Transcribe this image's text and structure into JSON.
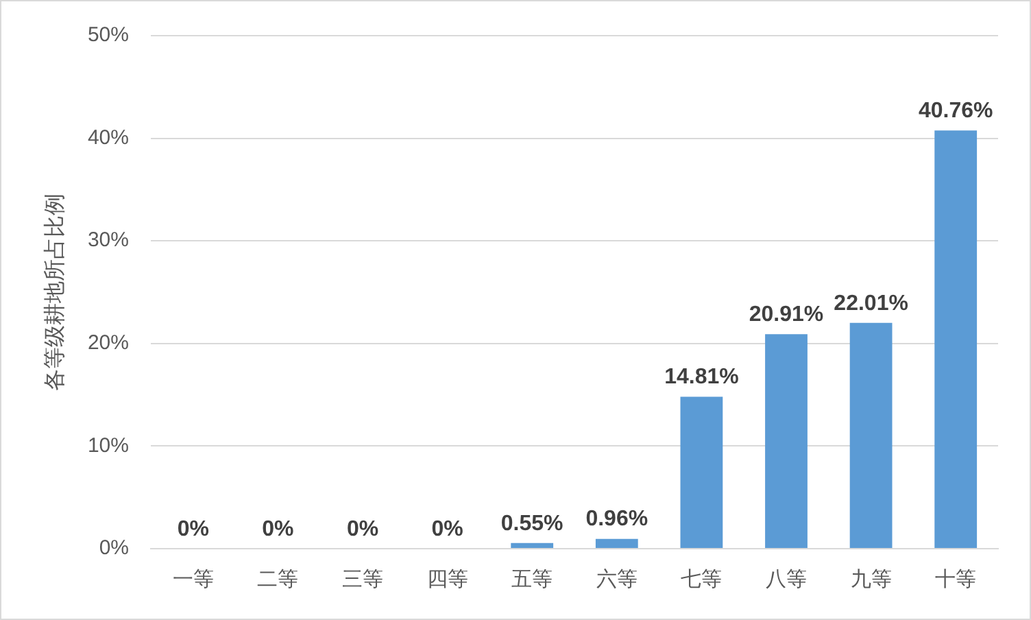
{
  "chart_data": {
    "type": "bar",
    "ylabel": "各等级耕地所占比例",
    "categories": [
      "一等",
      "二等",
      "三等",
      "四等",
      "五等",
      "六等",
      "七等",
      "八等",
      "九等",
      "十等"
    ],
    "values": [
      0,
      0,
      0,
      0,
      0.55,
      0.96,
      14.81,
      20.91,
      22.01,
      40.76
    ],
    "value_labels": [
      "0%",
      "0%",
      "0%",
      "0%",
      "0.55%",
      "0.96%",
      "14.81%",
      "20.91%",
      "22.01%",
      "40.76%"
    ],
    "color": "#5b9bd5",
    "ylim": [
      0,
      50
    ],
    "yticks": [
      {
        "value": 0,
        "label": "0%"
      },
      {
        "value": 10,
        "label": "10%"
      },
      {
        "value": 20,
        "label": "20%"
      },
      {
        "value": 30,
        "label": "30%"
      },
      {
        "value": 40,
        "label": "40%"
      },
      {
        "value": 50,
        "label": "50%"
      }
    ],
    "grid": "y"
  }
}
